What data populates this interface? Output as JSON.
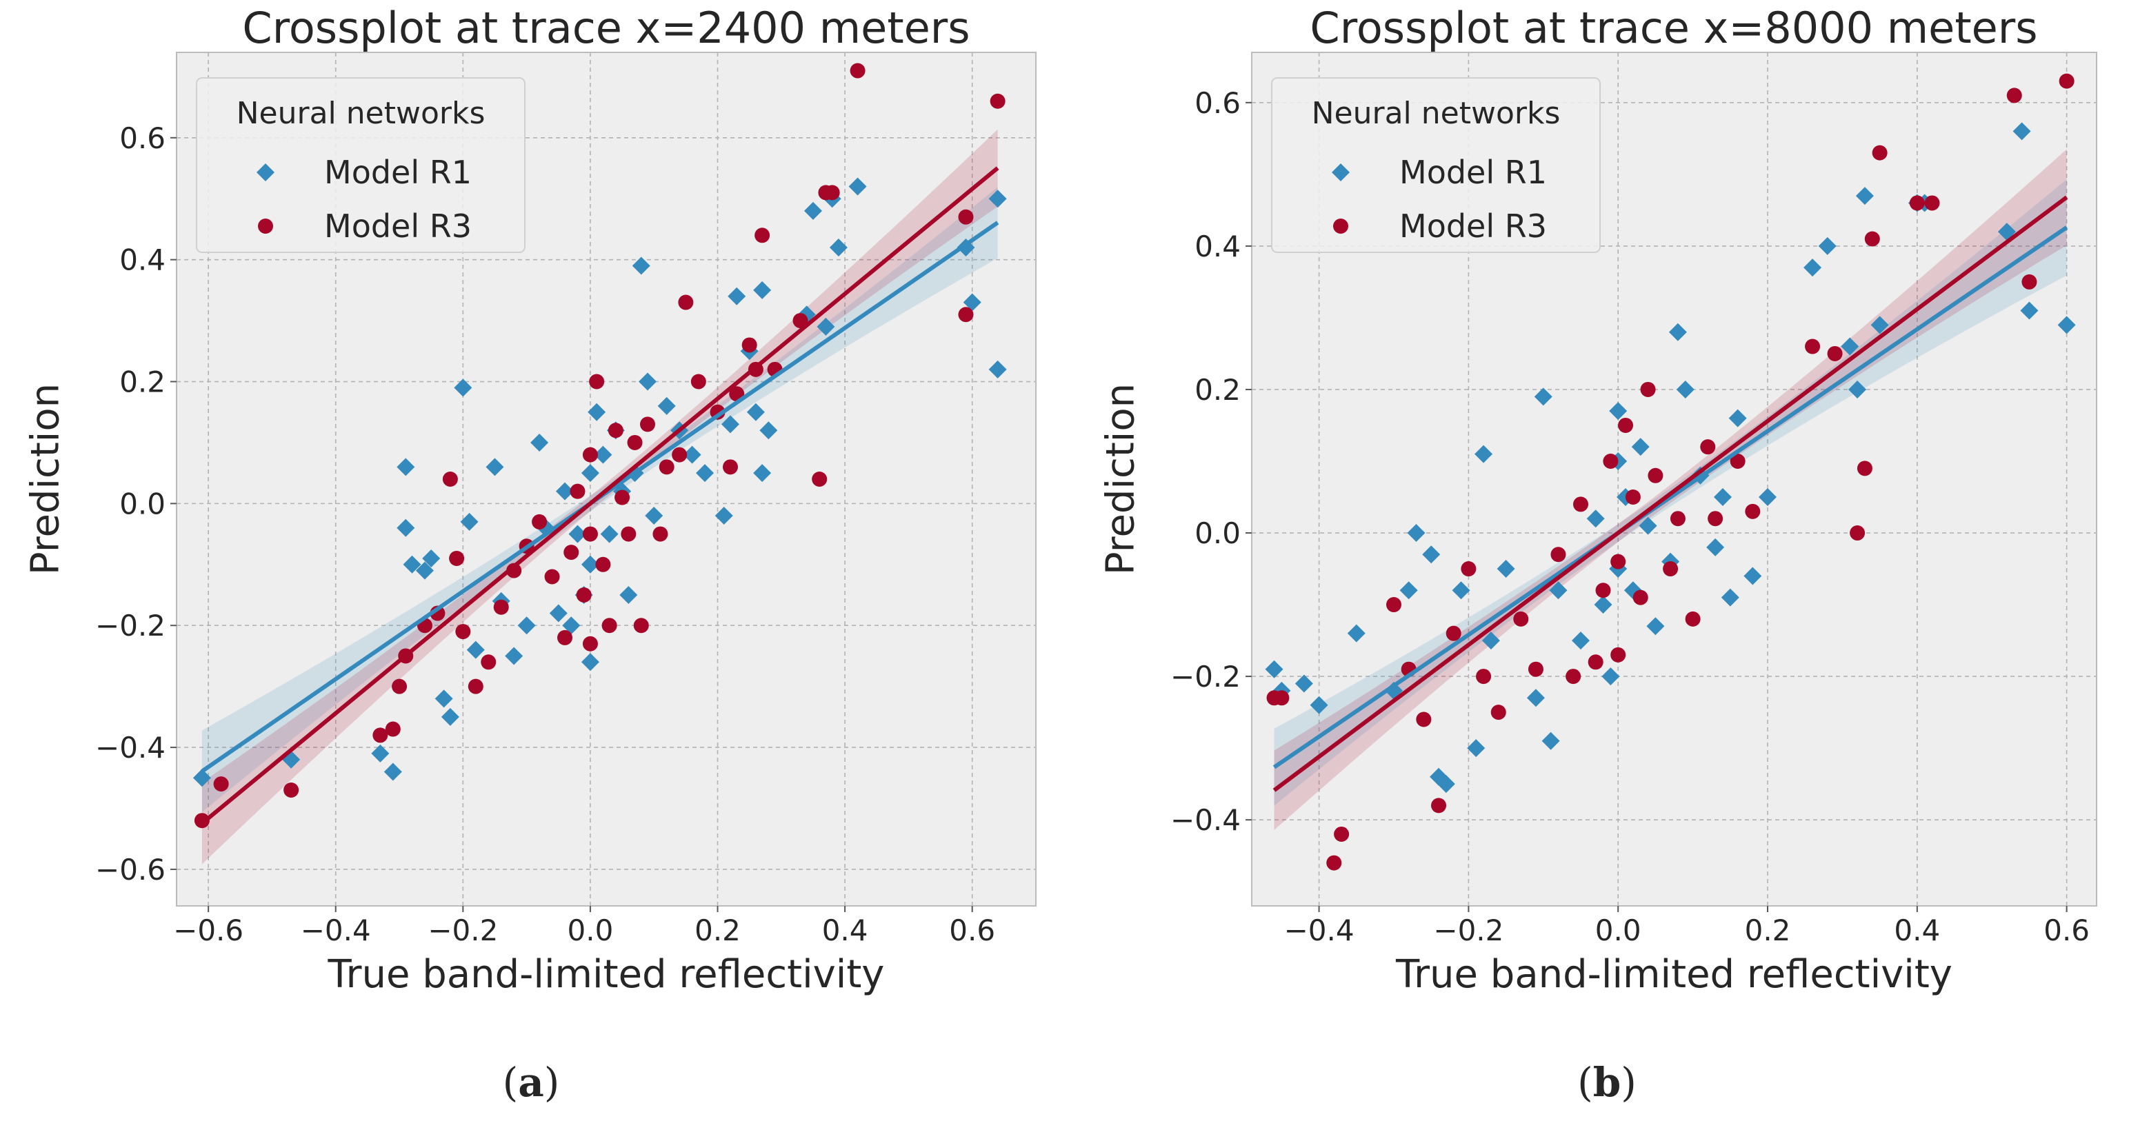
{
  "legend_title": "Neural networks",
  "chart_data": [
    {
      "type": "scatter",
      "panel_label": "(a)",
      "panel_letter": "a",
      "title": "Crossplot at trace x=2400 meters",
      "xlabel": "True band-limited reflectivity",
      "ylabel": "Prediction",
      "xlim": [
        -0.65,
        0.7
      ],
      "ylim": [
        -0.66,
        0.74
      ],
      "xticks": [
        -0.6,
        -0.4,
        -0.2,
        0.0,
        0.2,
        0.4,
        0.6
      ],
      "yticks": [
        -0.6,
        -0.4,
        -0.2,
        0.0,
        0.2,
        0.4,
        0.6
      ],
      "xtick_labels": [
        "−0.6",
        "−0.4",
        "−0.2",
        "0.0",
        "0.2",
        "0.4",
        "0.6"
      ],
      "ytick_labels": [
        "−0.6",
        "−0.4",
        "−0.2",
        "0.0",
        "0.2",
        "0.4",
        "0.6"
      ],
      "grid": true,
      "legend": "upper-left",
      "series": [
        {
          "name": "Model R1",
          "color": "#348ABD",
          "marker": "diamond",
          "fit": {
            "slope": 0.72,
            "intercept": 0.0
          },
          "points": [
            [
              -0.61,
              -0.45
            ],
            [
              -0.47,
              -0.42
            ],
            [
              -0.33,
              -0.41
            ],
            [
              -0.31,
              -0.44
            ],
            [
              -0.29,
              0.06
            ],
            [
              -0.29,
              -0.04
            ],
            [
              -0.28,
              -0.1
            ],
            [
              -0.26,
              -0.11
            ],
            [
              -0.25,
              -0.09
            ],
            [
              -0.23,
              -0.32
            ],
            [
              -0.22,
              -0.35
            ],
            [
              -0.2,
              0.19
            ],
            [
              -0.19,
              -0.03
            ],
            [
              -0.18,
              -0.24
            ],
            [
              -0.15,
              0.06
            ],
            [
              -0.14,
              -0.16
            ],
            [
              -0.12,
              -0.25
            ],
            [
              -0.1,
              -0.2
            ],
            [
              -0.08,
              0.1
            ],
            [
              -0.07,
              -0.04
            ],
            [
              -0.05,
              -0.18
            ],
            [
              -0.04,
              0.02
            ],
            [
              -0.03,
              -0.2
            ],
            [
              -0.02,
              -0.05
            ],
            [
              -0.01,
              -0.15
            ],
            [
              0.0,
              -0.26
            ],
            [
              0.0,
              -0.1
            ],
            [
              0.0,
              0.05
            ],
            [
              0.01,
              0.15
            ],
            [
              0.02,
              0.08
            ],
            [
              0.03,
              -0.05
            ],
            [
              0.04,
              0.12
            ],
            [
              0.05,
              0.02
            ],
            [
              0.06,
              -0.15
            ],
            [
              0.07,
              0.05
            ],
            [
              0.08,
              0.39
            ],
            [
              0.09,
              0.2
            ],
            [
              0.1,
              -0.02
            ],
            [
              0.12,
              0.16
            ],
            [
              0.14,
              0.12
            ],
            [
              0.16,
              0.08
            ],
            [
              0.18,
              0.05
            ],
            [
              0.21,
              -0.02
            ],
            [
              0.22,
              0.13
            ],
            [
              0.23,
              0.34
            ],
            [
              0.25,
              0.25
            ],
            [
              0.26,
              0.15
            ],
            [
              0.27,
              0.35
            ],
            [
              0.27,
              0.05
            ],
            [
              0.28,
              0.12
            ],
            [
              0.34,
              0.31
            ],
            [
              0.35,
              0.48
            ],
            [
              0.37,
              0.29
            ],
            [
              0.38,
              0.5
            ],
            [
              0.39,
              0.42
            ],
            [
              0.42,
              0.52
            ],
            [
              0.59,
              0.42
            ],
            [
              0.6,
              0.33
            ],
            [
              0.64,
              0.22
            ],
            [
              0.64,
              0.5
            ]
          ]
        },
        {
          "name": "Model R3",
          "color": "#A60628",
          "marker": "circle",
          "fit": {
            "slope": 0.86,
            "intercept": 0.0
          },
          "points": [
            [
              -0.61,
              -0.52
            ],
            [
              -0.58,
              -0.46
            ],
            [
              -0.47,
              -0.47
            ],
            [
              -0.33,
              -0.38
            ],
            [
              -0.31,
              -0.37
            ],
            [
              -0.3,
              -0.3
            ],
            [
              -0.29,
              -0.25
            ],
            [
              -0.26,
              -0.2
            ],
            [
              -0.24,
              -0.18
            ],
            [
              -0.22,
              0.04
            ],
            [
              -0.21,
              -0.09
            ],
            [
              -0.2,
              -0.21
            ],
            [
              -0.18,
              -0.3
            ],
            [
              -0.16,
              -0.26
            ],
            [
              -0.14,
              -0.17
            ],
            [
              -0.12,
              -0.11
            ],
            [
              -0.1,
              -0.07
            ],
            [
              -0.08,
              -0.03
            ],
            [
              -0.06,
              -0.12
            ],
            [
              -0.04,
              -0.22
            ],
            [
              -0.03,
              -0.08
            ],
            [
              -0.02,
              0.02
            ],
            [
              -0.01,
              -0.15
            ],
            [
              0.0,
              -0.23
            ],
            [
              0.0,
              -0.05
            ],
            [
              0.0,
              0.08
            ],
            [
              0.01,
              0.2
            ],
            [
              0.02,
              -0.1
            ],
            [
              0.03,
              -0.2
            ],
            [
              0.04,
              0.12
            ],
            [
              0.05,
              0.01
            ],
            [
              0.06,
              -0.05
            ],
            [
              0.07,
              0.1
            ],
            [
              0.08,
              -0.2
            ],
            [
              0.09,
              0.13
            ],
            [
              0.11,
              -0.05
            ],
            [
              0.12,
              0.06
            ],
            [
              0.14,
              0.08
            ],
            [
              0.15,
              0.33
            ],
            [
              0.17,
              0.2
            ],
            [
              0.2,
              0.15
            ],
            [
              0.22,
              0.06
            ],
            [
              0.23,
              0.18
            ],
            [
              0.25,
              0.26
            ],
            [
              0.26,
              0.22
            ],
            [
              0.27,
              0.44
            ],
            [
              0.29,
              0.22
            ],
            [
              0.33,
              0.3
            ],
            [
              0.36,
              0.04
            ],
            [
              0.37,
              0.51
            ],
            [
              0.38,
              0.51
            ],
            [
              0.42,
              0.71
            ],
            [
              0.59,
              0.47
            ],
            [
              0.59,
              0.31
            ],
            [
              0.64,
              0.66
            ]
          ]
        }
      ]
    },
    {
      "type": "scatter",
      "panel_label": "(b)",
      "panel_letter": "b",
      "title": "Crossplot at trace x=8000 meters",
      "xlabel": "True band-limited reflectivity",
      "ylabel": "Prediction",
      "xlim": [
        -0.49,
        0.64
      ],
      "ylim": [
        -0.52,
        0.67
      ],
      "xticks": [
        -0.4,
        -0.2,
        0.0,
        0.2,
        0.4,
        0.6
      ],
      "yticks": [
        -0.4,
        -0.2,
        0.0,
        0.2,
        0.4,
        0.6
      ],
      "xtick_labels": [
        "−0.4",
        "−0.2",
        "0.0",
        "0.2",
        "0.4",
        "0.6"
      ],
      "ytick_labels": [
        "−0.4",
        "−0.2",
        "0.0",
        "0.2",
        "0.4",
        "0.6"
      ],
      "grid": true,
      "legend": "upper-left",
      "series": [
        {
          "name": "Model R1",
          "color": "#348ABD",
          "marker": "diamond",
          "fit": {
            "slope": 0.71,
            "intercept": 0.0
          },
          "points": [
            [
              -0.46,
              -0.19
            ],
            [
              -0.45,
              -0.22
            ],
            [
              -0.42,
              -0.21
            ],
            [
              -0.4,
              -0.24
            ],
            [
              -0.35,
              -0.14
            ],
            [
              -0.3,
              -0.22
            ],
            [
              -0.28,
              -0.08
            ],
            [
              -0.27,
              0.0
            ],
            [
              -0.25,
              -0.03
            ],
            [
              -0.24,
              -0.34
            ],
            [
              -0.23,
              -0.35
            ],
            [
              -0.21,
              -0.08
            ],
            [
              -0.19,
              -0.3
            ],
            [
              -0.18,
              0.11
            ],
            [
              -0.17,
              -0.15
            ],
            [
              -0.15,
              -0.05
            ],
            [
              -0.11,
              -0.23
            ],
            [
              -0.1,
              0.19
            ],
            [
              -0.09,
              -0.29
            ],
            [
              -0.08,
              -0.08
            ],
            [
              -0.05,
              -0.15
            ],
            [
              -0.03,
              0.02
            ],
            [
              -0.02,
              -0.1
            ],
            [
              -0.01,
              -0.2
            ],
            [
              0.0,
              -0.05
            ],
            [
              0.0,
              0.1
            ],
            [
              0.0,
              0.17
            ],
            [
              0.01,
              0.05
            ],
            [
              0.02,
              -0.08
            ],
            [
              0.03,
              0.12
            ],
            [
              0.04,
              0.01
            ],
            [
              0.05,
              -0.13
            ],
            [
              0.07,
              -0.04
            ],
            [
              0.08,
              0.28
            ],
            [
              0.09,
              0.2
            ],
            [
              0.11,
              0.08
            ],
            [
              0.13,
              -0.02
            ],
            [
              0.14,
              0.05
            ],
            [
              0.15,
              -0.09
            ],
            [
              0.16,
              0.16
            ],
            [
              0.18,
              -0.06
            ],
            [
              0.2,
              0.05
            ],
            [
              0.26,
              0.37
            ],
            [
              0.28,
              0.4
            ],
            [
              0.31,
              0.26
            ],
            [
              0.32,
              0.2
            ],
            [
              0.33,
              0.47
            ],
            [
              0.35,
              0.29
            ],
            [
              0.4,
              0.46
            ],
            [
              0.41,
              0.46
            ],
            [
              0.52,
              0.42
            ],
            [
              0.54,
              0.56
            ],
            [
              0.55,
              0.31
            ],
            [
              0.6,
              0.29
            ]
          ]
        },
        {
          "name": "Model R3",
          "color": "#A60628",
          "marker": "circle",
          "fit": {
            "slope": 0.78,
            "intercept": 0.0
          },
          "points": [
            [
              -0.46,
              -0.23
            ],
            [
              -0.45,
              -0.23
            ],
            [
              -0.38,
              -0.46
            ],
            [
              -0.37,
              -0.42
            ],
            [
              -0.3,
              -0.1
            ],
            [
              -0.28,
              -0.19
            ],
            [
              -0.26,
              -0.26
            ],
            [
              -0.24,
              -0.38
            ],
            [
              -0.22,
              -0.14
            ],
            [
              -0.2,
              -0.05
            ],
            [
              -0.18,
              -0.2
            ],
            [
              -0.16,
              -0.25
            ],
            [
              -0.13,
              -0.12
            ],
            [
              -0.11,
              -0.19
            ],
            [
              -0.08,
              -0.03
            ],
            [
              -0.06,
              -0.2
            ],
            [
              -0.05,
              0.04
            ],
            [
              -0.03,
              -0.18
            ],
            [
              -0.02,
              -0.08
            ],
            [
              -0.01,
              0.1
            ],
            [
              0.0,
              -0.04
            ],
            [
              0.0,
              -0.17
            ],
            [
              0.01,
              0.15
            ],
            [
              0.02,
              0.05
            ],
            [
              0.03,
              -0.09
            ],
            [
              0.04,
              0.2
            ],
            [
              0.05,
              0.08
            ],
            [
              0.07,
              -0.05
            ],
            [
              0.08,
              0.02
            ],
            [
              0.1,
              -0.12
            ],
            [
              0.12,
              0.12
            ],
            [
              0.13,
              0.02
            ],
            [
              0.16,
              0.1
            ],
            [
              0.18,
              0.03
            ],
            [
              0.26,
              0.26
            ],
            [
              0.29,
              0.25
            ],
            [
              0.32,
              0.0
            ],
            [
              0.33,
              0.09
            ],
            [
              0.34,
              0.41
            ],
            [
              0.35,
              0.53
            ],
            [
              0.4,
              0.46
            ],
            [
              0.42,
              0.46
            ],
            [
              0.53,
              0.61
            ],
            [
              0.55,
              0.35
            ],
            [
              0.6,
              0.63
            ]
          ]
        }
      ]
    }
  ]
}
